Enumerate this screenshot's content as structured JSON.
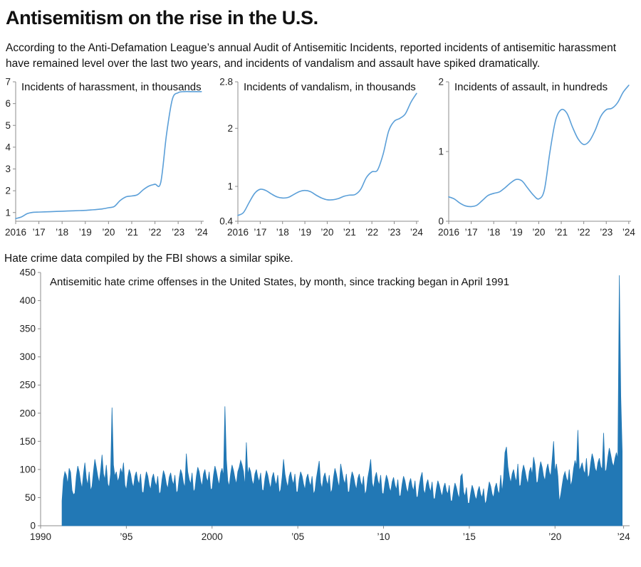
{
  "page": {
    "title": "Antisemitism on the rise in the U.S.",
    "subtitle": "According to the Anti-Defamation League’s annual Audit of Antisemitic Incidents, reported incidents of antisemitic harassment have remained level over the last two years, and incidents of vandalism and assault have spiked dramatically.",
    "middle_note": "Hate crime data compiled by the FBI shows a similar spike."
  },
  "colors": {
    "line": "#5b9fd8",
    "fill": "#2278b5",
    "axis": "#8c8c8c",
    "text": "#1a1a1a"
  },
  "chart_data": [
    {
      "type": "line",
      "title": "Incidents of harassment, in thousands",
      "x_start": 2016,
      "x_step": 0.25,
      "xlim": [
        2016,
        2024.1
      ],
      "ylim": [
        0.6,
        7.0
      ],
      "yticks": [
        1,
        2,
        3,
        4,
        5,
        6,
        7
      ],
      "xticks": [
        2016,
        2017,
        2018,
        2019,
        2020,
        2021,
        2022,
        2023,
        2024
      ],
      "xtick_labels": [
        "2016",
        "’17",
        "’18",
        "’19",
        "’20",
        "’21",
        "’22",
        "’23",
        "’24"
      ],
      "values": [
        0.72,
        0.8,
        0.95,
        1.01,
        1.02,
        1.03,
        1.04,
        1.05,
        1.06,
        1.07,
        1.08,
        1.09,
        1.1,
        1.12,
        1.14,
        1.17,
        1.22,
        1.28,
        1.55,
        1.72,
        1.76,
        1.82,
        2.05,
        2.22,
        2.3,
        2.38,
        4.6,
        6.2,
        6.5,
        6.55,
        6.55,
        6.55,
        6.55
      ]
    },
    {
      "type": "line",
      "title": "Incidents of vandalism, in thousands",
      "x_start": 2016,
      "x_step": 0.25,
      "xlim": [
        2016,
        2024.1
      ],
      "ylim": [
        0.4,
        2.8
      ],
      "yticks": [
        0.4,
        1,
        2,
        2.8
      ],
      "xticks": [
        2016,
        2017,
        2018,
        2019,
        2020,
        2021,
        2022,
        2023,
        2024
      ],
      "xtick_labels": [
        "2016",
        "’17",
        "’18",
        "’19",
        "’20",
        "’21",
        "’22",
        "’23",
        "’24"
      ],
      "values": [
        0.5,
        0.55,
        0.72,
        0.88,
        0.95,
        0.93,
        0.87,
        0.82,
        0.8,
        0.81,
        0.86,
        0.91,
        0.93,
        0.91,
        0.85,
        0.8,
        0.77,
        0.77,
        0.79,
        0.83,
        0.85,
        0.86,
        0.95,
        1.15,
        1.25,
        1.28,
        1.55,
        1.95,
        2.12,
        2.17,
        2.25,
        2.45,
        2.6
      ]
    },
    {
      "type": "line",
      "title": "Incidents of assault, in hundreds",
      "x_start": 2016,
      "x_step": 0.25,
      "xlim": [
        2016,
        2024.1
      ],
      "ylim": [
        0,
        2
      ],
      "yticks": [
        0,
        1,
        2
      ],
      "xticks": [
        2016,
        2017,
        2018,
        2019,
        2020,
        2021,
        2022,
        2023,
        2024
      ],
      "xtick_labels": [
        "2016",
        "’17",
        "’18",
        "’19",
        "’20",
        "’21",
        "’22",
        "’23",
        "’24"
      ],
      "values": [
        0.35,
        0.32,
        0.26,
        0.22,
        0.21,
        0.23,
        0.3,
        0.37,
        0.4,
        0.42,
        0.48,
        0.55,
        0.6,
        0.58,
        0.48,
        0.38,
        0.32,
        0.45,
        1.0,
        1.45,
        1.6,
        1.55,
        1.35,
        1.18,
        1.1,
        1.15,
        1.3,
        1.5,
        1.6,
        1.62,
        1.7,
        1.85,
        1.95
      ]
    },
    {
      "type": "area",
      "title": "Antisemitic hate crime offenses in the United States, by month, since tracking began in April 1991",
      "x_start": 1991.25,
      "x_step": 0.0833333,
      "xlim": [
        1990,
        2024.35
      ],
      "ylim": [
        0,
        450
      ],
      "yticks": [
        0,
        50,
        100,
        150,
        200,
        250,
        300,
        350,
        400,
        450
      ],
      "xticks": [
        1990,
        1995,
        2000,
        2005,
        2010,
        2015,
        2020,
        2024
      ],
      "xtick_labels": [
        "1990",
        "’95",
        "2000",
        "’05",
        "’10",
        "’15",
        "’20",
        "’24"
      ],
      "values": [
        44,
        82,
        96,
        90,
        74,
        102,
        95,
        63,
        55,
        58,
        88,
        106,
        96,
        78,
        66,
        92,
        112,
        84,
        72,
        96,
        62,
        70,
        96,
        118,
        104,
        88,
        76,
        98,
        126,
        92,
        82,
        108,
        74,
        68,
        92,
        210,
        108,
        88,
        96,
        78,
        86,
        102,
        92,
        112,
        72,
        64,
        86,
        100,
        92,
        76,
        68,
        88,
        96,
        80,
        74,
        92,
        60,
        58,
        80,
        96,
        88,
        72,
        64,
        84,
        92,
        78,
        70,
        88,
        56,
        60,
        82,
        98,
        90,
        74,
        66,
        86,
        94,
        80,
        72,
        90,
        58,
        62,
        85,
        100,
        92,
        76,
        68,
        128,
        96,
        82,
        74,
        94,
        60,
        65,
        88,
        104,
        96,
        80,
        70,
        92,
        100,
        85,
        78,
        96,
        64,
        66,
        90,
        106,
        96,
        82,
        72,
        94,
        102,
        88,
        212,
        118,
        80,
        70,
        92,
        108,
        98,
        84,
        74,
        96,
        104,
        116,
        108,
        96,
        70,
        148,
        90,
        104,
        96,
        80,
        72,
        92,
        100,
        86,
        78,
        94,
        64,
        62,
        84,
        98,
        90,
        76,
        66,
        86,
        95,
        80,
        72,
        90,
        58,
        64,
        86,
        118,
        92,
        78,
        68,
        88,
        96,
        82,
        74,
        92,
        60,
        60,
        82,
        96,
        88,
        74,
        64,
        84,
        92,
        78,
        70,
        88,
        56,
        62,
        84,
        100,
        115,
        76,
        66,
        86,
        94,
        80,
        72,
        90,
        58,
        64,
        86,
        102,
        92,
        78,
        68,
        110,
        96,
        82,
        74,
        92,
        60,
        60,
        82,
        96,
        88,
        74,
        64,
        84,
        92,
        78,
        70,
        88,
        55,
        62,
        85,
        100,
        118,
        76,
        66,
        86,
        95,
        80,
        72,
        90,
        58,
        56,
        76,
        90,
        82,
        68,
        60,
        78,
        86,
        72,
        64,
        82,
        52,
        54,
        74,
        88,
        80,
        66,
        58,
        76,
        84,
        70,
        62,
        80,
        50,
        52,
        72,
        86,
        95,
        64,
        56,
        74,
        82,
        68,
        60,
        78,
        48,
        48,
        66,
        80,
        72,
        60,
        52,
        68,
        76,
        62,
        56,
        72,
        44,
        44,
        62,
        76,
        68,
        56,
        48,
        88,
        92,
        60,
        52,
        68,
        40,
        40,
        58,
        72,
        64,
        52,
        46,
        62,
        70,
        56,
        50,
        66,
        38,
        44,
        62,
        78,
        70,
        56,
        50,
        68,
        76,
        62,
        56,
        90,
        60,
        85,
        130,
        140,
        105,
        88,
        76,
        92,
        100,
        86,
        78,
        110,
        70,
        72,
        95,
        108,
        98,
        84,
        74,
        96,
        104,
        90,
        122,
        108,
        76,
        78,
        100,
        114,
        104,
        88,
        80,
        100,
        110,
        95,
        88,
        118,
        150,
        95,
        110,
        88,
        42,
        55,
        72,
        88,
        96,
        84,
        78,
        100,
        70,
        80,
        102,
        116,
        106,
        170,
        98,
        104,
        112,
        98,
        92,
        120,
        85,
        90,
        112,
        128,
        118,
        102,
        95,
        112,
        120,
        105,
        100,
        165,
        95,
        100,
        122,
        138,
        126,
        112,
        105,
        120,
        130,
        118,
        445,
        230,
        132
      ]
    }
  ]
}
